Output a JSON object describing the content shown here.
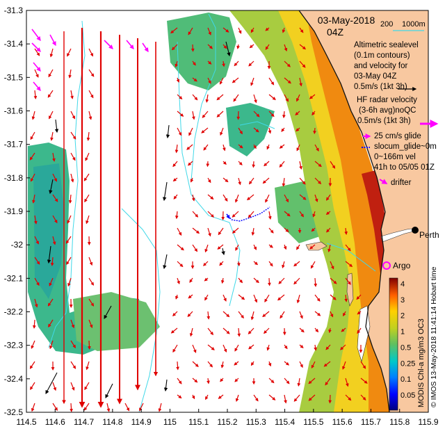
{
  "map": {
    "date": "03-May-2018",
    "time": "04Z",
    "lon_ticks": [
      "114.5",
      "114.6",
      "114.7",
      "114.8",
      "114.9",
      "115",
      "115.1",
      "115.2",
      "115.3",
      "115.4",
      "115.5",
      "115.6",
      "115.7",
      "115.8",
      "115.9"
    ],
    "lat_ticks": [
      "-31.3",
      "-31.4",
      "-31.5",
      "-31.6",
      "-31.7",
      "-31.8",
      "-31.9",
      "-32",
      "-32.1",
      "-32.2",
      "-32.3",
      "-32.4",
      "-32.5"
    ],
    "lon_range": [
      114.5,
      115.9
    ],
    "lat_range": [
      -32.5,
      -31.3
    ],
    "colors": {
      "land": "#f8c8a0",
      "ocean_empty": "#ffffff",
      "contour": "#40d8e8",
      "hf_arrow": "#e00000",
      "alt_arrow": "#000000",
      "glider": "#ff00ff",
      "glider_track": "#0000ff"
    }
  },
  "legend": {
    "depth_200": "200",
    "depth_1000": "1000m",
    "altimetric_lines": [
      "Altimetric sealevel",
      "(0.1m contours)",
      "and velocity for",
      "03-May 04Z",
      "0.5m/s (1kt 3h)"
    ],
    "hf_lines": [
      "HF radar velocity",
      "(3-6h avg)noQC",
      "0.5m/s (1kt 3h)"
    ],
    "glider_lines": [
      "25 cm/s glide",
      "slocum_glide~0m",
      "0~166m vel",
      "41h to 05/05 01Z"
    ],
    "drifter": "drifter",
    "argo": "Argo"
  },
  "places": {
    "perth": "Perth"
  },
  "colorbar": {
    "ticks": [
      "4",
      "3",
      "2",
      "1",
      "0.5",
      "0.25",
      "0.1",
      "0.05"
    ],
    "title": "MODIS Chl-a mg/m3 OC3",
    "credit": "© IMOS 13-May-2018 11:41:14 Hobart time"
  }
}
